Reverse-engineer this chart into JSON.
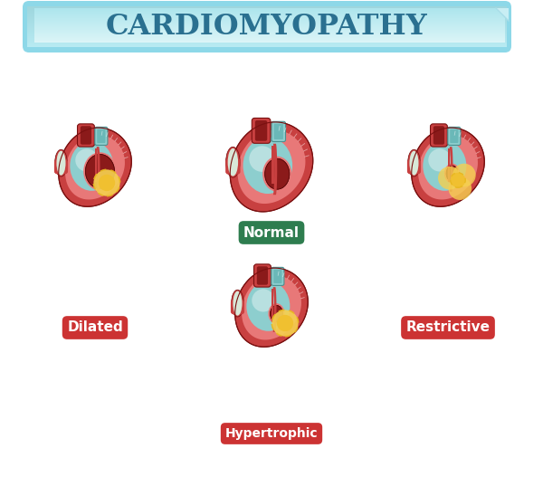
{
  "title": "CARDIOMYOPATHY",
  "title_color": "#2a7090",
  "background_color": "#ffffff",
  "banner_color_top": "#b8eaf2",
  "banner_color_bottom": "#5cbcd8",
  "labels": [
    "Normal",
    "Dilated",
    "Hypertrophic",
    "Restrictive"
  ],
  "label_colors": [
    "#2e7d4f",
    "#cc3333",
    "#cc3333",
    "#cc3333"
  ],
  "heart_outer": "#c84040",
  "heart_wall": "#e87878",
  "heart_teal": "#8dcece",
  "heart_teal_light": "#b8e0e0",
  "heart_dark": "#8b1a1a",
  "heart_pink": "#f0a0a0",
  "vessel_cream": "#d8e8d8",
  "yellow_bright": "#f0c030",
  "yellow_mid": "#f5d050",
  "yellow_outer": "#e8b820"
}
